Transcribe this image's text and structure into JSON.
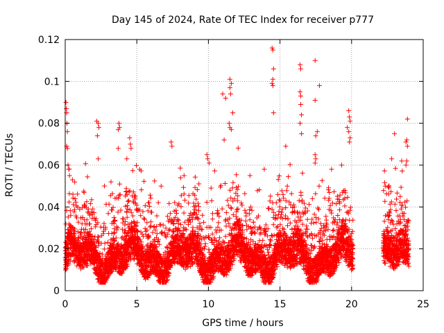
{
  "chart_data": {
    "type": "scatter",
    "title": "Day 145 of 2024, Rate Of TEC Index for receiver p777",
    "xlabel": "GPS time / hours",
    "ylabel": "ROTI / TECUs",
    "xlim": [
      0,
      25
    ],
    "ylim": [
      0,
      0.12
    ],
    "x_ticks": [
      0,
      5,
      10,
      15,
      20,
      25
    ],
    "y_ticks": [
      0,
      0.02,
      0.04,
      0.06,
      0.08,
      0.1,
      0.12
    ],
    "x_tick_labels": [
      "0",
      "5",
      "10",
      "15",
      "20",
      "25"
    ],
    "y_tick_labels": [
      "0",
      "0.02",
      "0.04",
      "0.06",
      "0.08",
      "0.1",
      "0.12"
    ],
    "grid": true,
    "marker": "+",
    "color": "#ff0000",
    "coverage": [
      [
        0,
        20.1
      ],
      [
        22.2,
        24
      ]
    ],
    "series": [
      {
        "name": "p777 ROTI",
        "points": [
          [
            0.05,
            0.09
          ],
          [
            0.08,
            0.087
          ],
          [
            0.1,
            0.085
          ],
          [
            0.12,
            0.08
          ],
          [
            0.15,
            0.076
          ],
          [
            0.1,
            0.069
          ],
          [
            0.15,
            0.068
          ],
          [
            0.2,
            0.06
          ],
          [
            0.25,
            0.058
          ],
          [
            0.3,
            0.055
          ],
          [
            2.2,
            0.081
          ],
          [
            2.3,
            0.08
          ],
          [
            2.35,
            0.078
          ],
          [
            2.25,
            0.074
          ],
          [
            2.3,
            0.063
          ],
          [
            3.75,
            0.08
          ],
          [
            3.8,
            0.078
          ],
          [
            3.7,
            0.077
          ],
          [
            3.7,
            0.068
          ],
          [
            4.5,
            0.073
          ],
          [
            4.55,
            0.07
          ],
          [
            4.6,
            0.068
          ],
          [
            4.3,
            0.063
          ],
          [
            7.4,
            0.071
          ],
          [
            7.45,
            0.069
          ],
          [
            9.9,
            0.065
          ],
          [
            9.95,
            0.063
          ],
          [
            10.05,
            0.061
          ],
          [
            11.0,
            0.094
          ],
          [
            11.2,
            0.092
          ],
          [
            11.5,
            0.101
          ],
          [
            11.6,
            0.099
          ],
          [
            11.5,
            0.097
          ],
          [
            11.55,
            0.094
          ],
          [
            11.7,
            0.085
          ],
          [
            11.45,
            0.08
          ],
          [
            11.5,
            0.078
          ],
          [
            11.6,
            0.077
          ],
          [
            11.1,
            0.072
          ],
          [
            14.45,
            0.116
          ],
          [
            14.5,
            0.115
          ],
          [
            14.55,
            0.106
          ],
          [
            14.5,
            0.101
          ],
          [
            14.45,
            0.099
          ],
          [
            14.5,
            0.098
          ],
          [
            14.55,
            0.085
          ],
          [
            16.4,
            0.108
          ],
          [
            16.45,
            0.106
          ],
          [
            16.4,
            0.095
          ],
          [
            16.45,
            0.093
          ],
          [
            16.45,
            0.089
          ],
          [
            16.5,
            0.084
          ],
          [
            16.4,
            0.08
          ],
          [
            16.5,
            0.075
          ],
          [
            15.4,
            0.069
          ],
          [
            17.45,
            0.11
          ],
          [
            17.75,
            0.098
          ],
          [
            17.45,
            0.091
          ],
          [
            17.6,
            0.076
          ],
          [
            17.5,
            0.074
          ],
          [
            17.45,
            0.065
          ],
          [
            17.5,
            0.063
          ],
          [
            17.45,
            0.061
          ],
          [
            19.8,
            0.086
          ],
          [
            19.85,
            0.083
          ],
          [
            19.9,
            0.081
          ],
          [
            19.7,
            0.078
          ],
          [
            19.8,
            0.076
          ],
          [
            19.9,
            0.073
          ],
          [
            19.85,
            0.071
          ],
          [
            23.0,
            0.075
          ],
          [
            23.9,
            0.082
          ],
          [
            23.85,
            0.072
          ],
          [
            23.8,
            0.071
          ],
          [
            23.9,
            0.069
          ],
          [
            23.85,
            0.062
          ],
          [
            23.8,
            0.06
          ],
          [
            3.2,
            0.052
          ],
          [
            5.2,
            0.058
          ],
          [
            6.7,
            0.05
          ],
          [
            8.3,
            0.055
          ],
          [
            12.9,
            0.055
          ],
          [
            13.9,
            0.058
          ],
          [
            18.6,
            0.058
          ],
          [
            19.3,
            0.06
          ],
          [
            22.8,
            0.063
          ],
          [
            23.5,
            0.062
          ]
        ]
      }
    ],
    "background_density": {
      "description": "dense band of ROTI samples",
      "typical_range": [
        0.005,
        0.04
      ],
      "peak_range": [
        0.04,
        0.06
      ]
    }
  }
}
